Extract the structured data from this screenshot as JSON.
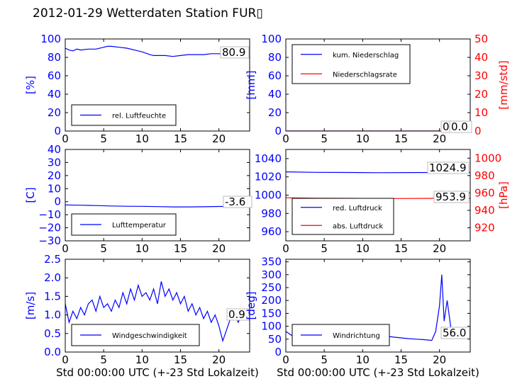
{
  "title": "2012-01-29 Wetterdaten Station FUR▯",
  "xlabel": "Std 00:00:00 UTC (+-23 Std Lokalzeit)",
  "colors": {
    "primary": "#0000ff",
    "secondary": "#ff0000",
    "black": "#000000"
  },
  "chart_data": [
    {
      "id": "humidity",
      "type": "line",
      "xlim": [
        0,
        24
      ],
      "xticks": [
        0,
        5,
        10,
        15,
        20
      ],
      "ylim": [
        0,
        100
      ],
      "yticks": [
        0,
        20,
        40,
        60,
        80,
        100
      ],
      "ylabel": "[%]",
      "ylabel_color": "#0000ff",
      "series": [
        {
          "name": "rel. Luftfeuchte",
          "color": "#0000ff",
          "x": [
            0,
            0.5,
            1,
            1.5,
            2,
            3,
            4,
            5,
            5.5,
            6,
            7,
            8,
            9,
            10,
            11,
            11.5,
            12,
            13,
            14,
            15,
            16,
            17,
            18,
            19,
            20,
            21,
            22,
            23,
            24
          ],
          "y": [
            90,
            88,
            87,
            89,
            88,
            89,
            89,
            91,
            92,
            92,
            91,
            90,
            88,
            86,
            83,
            82,
            82,
            82,
            81,
            82,
            83,
            83,
            83,
            84,
            84,
            83,
            82,
            81,
            81
          ]
        }
      ],
      "annotation": "80.9",
      "legend": "lower-left"
    },
    {
      "id": "precip",
      "type": "line",
      "xlim": [
        0,
        24
      ],
      "xticks": [
        0,
        5,
        10,
        15,
        20
      ],
      "ylim": [
        0,
        100
      ],
      "yticks": [
        0,
        20,
        40,
        60,
        80,
        100
      ],
      "ylabel": "[mm]",
      "ylabel_color": "#0000ff",
      "y2lim": [
        0,
        50
      ],
      "y2ticks": [
        0,
        10,
        20,
        30,
        40,
        50
      ],
      "y2label": "[mm/std]",
      "y2label_color": "#ff0000",
      "series": [
        {
          "name": "kum. Niederschlag",
          "color": "#0000ff",
          "axis": "left",
          "x": [
            0,
            24
          ],
          "y": [
            0,
            0
          ]
        },
        {
          "name": "Niederschlagsrate",
          "color": "#ff0000",
          "axis": "right",
          "x": [
            0,
            24
          ],
          "y": [
            0,
            0
          ]
        }
      ],
      "annotation": "0.0",
      "annotation2": "0.0",
      "legend": "upper-left"
    },
    {
      "id": "temperature",
      "type": "line",
      "xlim": [
        0,
        24
      ],
      "xticks": [
        0,
        5,
        10,
        15,
        20
      ],
      "ylim": [
        -30,
        40
      ],
      "yticks": [
        -30,
        -20,
        -10,
        0,
        10,
        20,
        30,
        40
      ],
      "ylabel": "[C]",
      "ylabel_color": "#0000ff",
      "series": [
        {
          "name": "Lufttemperatur",
          "color": "#0000ff",
          "x": [
            0,
            2,
            4,
            6,
            8,
            10,
            12,
            14,
            16,
            18,
            20,
            22,
            24
          ],
          "y": [
            -2.5,
            -2.7,
            -3.0,
            -3.3,
            -3.5,
            -3.6,
            -3.8,
            -4.0,
            -4.0,
            -3.9,
            -3.7,
            -3.6,
            -3.6
          ]
        }
      ],
      "annotation": "-3.6",
      "legend": "lower-left"
    },
    {
      "id": "pressure",
      "type": "line",
      "xlim": [
        0,
        24
      ],
      "xticks": [
        0,
        5,
        10,
        15,
        20
      ],
      "ylim": [
        950,
        1050
      ],
      "yticks": [
        960,
        980,
        1000,
        1020,
        1040
      ],
      "ylabel": "",
      "y2lim": [
        905,
        1010
      ],
      "y2ticks": [
        920,
        940,
        960,
        980,
        1000
      ],
      "y2label": "[hPa]",
      "y2label_color": "#ff0000",
      "series": [
        {
          "name": "red. Luftdruck",
          "color": "#0000ff",
          "axis": "left",
          "x": [
            0,
            4,
            8,
            12,
            16,
            20,
            24
          ],
          "y": [
            1025.5,
            1025.0,
            1024.8,
            1024.6,
            1024.7,
            1024.8,
            1024.9
          ]
        },
        {
          "name": "abs. Luftdruck",
          "color": "#ff0000",
          "axis": "right",
          "x": [
            0,
            4,
            8,
            12,
            16,
            20,
            24
          ],
          "y": [
            954.5,
            954.0,
            953.8,
            953.6,
            953.7,
            953.8,
            953.9
          ]
        }
      ],
      "annotation": "1024.9",
      "annotation2": "953.9",
      "legend": "lower-left"
    },
    {
      "id": "windspeed",
      "type": "line",
      "xlim": [
        0,
        24
      ],
      "xticks": [
        0,
        5,
        10,
        15,
        20
      ],
      "ylim": [
        0,
        2.5
      ],
      "yticks": [
        0.0,
        0.5,
        1.0,
        1.5,
        2.0,
        2.5
      ],
      "ylabel": "[m/s]",
      "ylabel_color": "#0000ff",
      "series": [
        {
          "name": "Windgeschwindigkeit",
          "color": "#0000ff",
          "x": [
            0,
            0.5,
            1,
            1.5,
            2,
            2.5,
            3,
            3.5,
            4,
            4.5,
            5,
            5.5,
            6,
            6.5,
            7,
            7.5,
            8,
            8.5,
            9,
            9.5,
            10,
            10.5,
            11,
            11.5,
            12,
            12.5,
            13,
            13.5,
            14,
            14.5,
            15,
            15.5,
            16,
            16.5,
            17,
            17.5,
            18,
            18.5,
            19,
            19.5,
            20,
            20.5,
            21,
            21.5,
            22,
            22.5,
            23,
            23.5,
            24
          ],
          "y": [
            1.3,
            0.8,
            1.1,
            0.9,
            1.2,
            1.0,
            1.3,
            1.4,
            1.1,
            1.5,
            1.2,
            1.3,
            1.1,
            1.4,
            1.2,
            1.6,
            1.3,
            1.7,
            1.4,
            1.8,
            1.5,
            1.6,
            1.4,
            1.7,
            1.3,
            1.9,
            1.5,
            1.7,
            1.4,
            1.6,
            1.3,
            1.5,
            1.1,
            1.3,
            1.0,
            1.2,
            0.9,
            1.1,
            0.8,
            1.0,
            0.7,
            0.3,
            0.6,
            0.9,
            1.1,
            0.8,
            1.0,
            0.9,
            0.9
          ]
        }
      ],
      "annotation": "0.9",
      "legend": "lower-left"
    },
    {
      "id": "winddir",
      "type": "line",
      "xlim": [
        0,
        24
      ],
      "xticks": [
        0,
        5,
        10,
        15,
        20
      ],
      "ylim": [
        0,
        360
      ],
      "yticks": [
        0,
        50,
        100,
        150,
        200,
        250,
        300,
        350
      ],
      "ylabel": "[deg]",
      "ylabel_color": "#0000ff",
      "series": [
        {
          "name": "Windrichtung",
          "color": "#0000ff",
          "x": [
            0,
            1,
            2,
            3,
            4,
            5,
            6,
            7,
            8,
            9,
            10,
            11,
            12,
            13,
            14,
            15,
            16,
            17,
            18,
            19,
            19.5,
            20,
            20.3,
            20.6,
            21,
            21.5,
            22,
            23,
            24
          ],
          "y": [
            80,
            60,
            70,
            65,
            60,
            70,
            65,
            55,
            60,
            65,
            60,
            55,
            60,
            62,
            58,
            55,
            52,
            50,
            48,
            45,
            80,
            180,
            300,
            120,
            200,
            90,
            60,
            55,
            56
          ]
        }
      ],
      "annotation": "56.0",
      "legend": "lower-left"
    }
  ]
}
